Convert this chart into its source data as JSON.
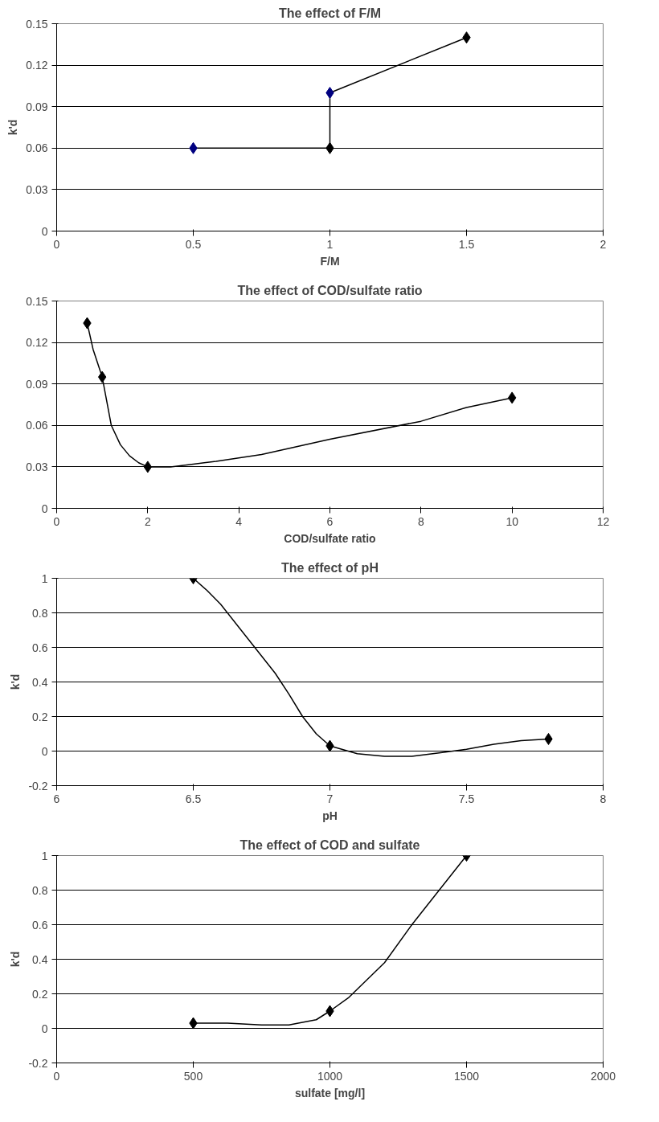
{
  "chart_data": [
    {
      "type": "line",
      "title": "The effect of F/M",
      "xlabel": "F/M",
      "ylabel": "k'd",
      "xlim": [
        0,
        2
      ],
      "xticks": [
        0,
        0.5,
        1,
        1.5,
        2
      ],
      "ylim": [
        0,
        0.15
      ],
      "yticks": [
        0,
        0.03,
        0.06,
        0.09,
        0.12,
        0.15
      ],
      "grid": "y",
      "series": [
        {
          "color": "#000000",
          "marker": "none",
          "x": [
            0.5,
            1,
            1,
            1.5
          ],
          "values": [
            0.06,
            0.06,
            0.1,
            0.14
          ]
        },
        {
          "type": "scatter",
          "marker": "diamond",
          "color": "#000080",
          "x": [
            0.5,
            1
          ],
          "values": [
            0.06,
            0.1
          ]
        },
        {
          "type": "scatter",
          "marker": "diamond",
          "color": "#000000",
          "x": [
            1,
            1.5
          ],
          "values": [
            0.06,
            0.14
          ]
        }
      ]
    },
    {
      "type": "line",
      "title": "The effect of COD/sulfate ratio",
      "xlabel": "COD/sulfate ratio",
      "xlim": [
        0,
        12
      ],
      "xticks": [
        0,
        2,
        4,
        6,
        8,
        10,
        12
      ],
      "ylim": [
        0,
        0.15
      ],
      "yticks": [
        0,
        0.03,
        0.06,
        0.09,
        0.12,
        0.15
      ],
      "grid": "y",
      "series": [
        {
          "color": "#000000",
          "marker": "none",
          "x": [
            0.67,
            0.8,
            1,
            1.2,
            1.4,
            1.6,
            1.8,
            2,
            2.5,
            3,
            3.5,
            4.5,
            6,
            8,
            9,
            10
          ],
          "values": [
            0.134,
            0.115,
            0.095,
            0.06,
            0.046,
            0.038,
            0.033,
            0.03,
            0.03,
            0.032,
            0.034,
            0.039,
            0.05,
            0.063,
            0.073,
            0.08
          ]
        },
        {
          "type": "scatter",
          "marker": "diamond",
          "color": "#000000",
          "x": [
            0.67,
            1,
            2,
            10
          ],
          "values": [
            0.134,
            0.095,
            0.03,
            0.08
          ]
        }
      ]
    },
    {
      "type": "line",
      "title": "The effect of pH",
      "xlabel": "pH",
      "ylabel": "k'd",
      "xlim": [
        6,
        8
      ],
      "xticks": [
        6,
        6.5,
        7,
        7.5,
        8
      ],
      "ylim": [
        -0.2,
        1
      ],
      "yticks": [
        -0.2,
        0,
        0.2,
        0.4,
        0.6,
        0.8,
        1
      ],
      "grid": "y",
      "series": [
        {
          "color": "#000000",
          "marker": "none",
          "x": [
            6.5,
            6.55,
            6.6,
            6.7,
            6.8,
            6.85,
            6.9,
            6.95,
            7,
            7.1,
            7.2,
            7.3,
            7.4,
            7.5,
            7.6,
            7.7,
            7.8
          ],
          "values": [
            1,
            0.93,
            0.85,
            0.65,
            0.45,
            0.33,
            0.2,
            0.1,
            0.03,
            -0.015,
            -0.03,
            -0.03,
            -0.01,
            0.01,
            0.04,
            0.06,
            0.07
          ]
        },
        {
          "type": "scatter",
          "marker": "diamond",
          "color": "#000000",
          "x": [
            6.5,
            7,
            7.8
          ],
          "values": [
            1,
            0.03,
            0.07
          ]
        }
      ]
    },
    {
      "type": "line",
      "title": "The effect of COD and sulfate",
      "xlabel": "sulfate [mg/l]",
      "ylabel": "k'd",
      "xlim": [
        0,
        2000
      ],
      "xticks": [
        0,
        500,
        1000,
        1500,
        2000
      ],
      "ylim": [
        -0.2,
        1
      ],
      "yticks": [
        -0.2,
        0,
        0.2,
        0.4,
        0.6,
        0.8,
        1
      ],
      "grid": "y",
      "series": [
        {
          "color": "#000000",
          "marker": "none",
          "x": [
            500,
            625,
            750,
            850,
            950,
            1000,
            1070,
            1200,
            1300,
            1400,
            1500
          ],
          "values": [
            0.03,
            0.03,
            0.02,
            0.02,
            0.05,
            0.1,
            0.18,
            0.38,
            0.6,
            0.8,
            1
          ]
        },
        {
          "type": "scatter",
          "marker": "diamond",
          "color": "#000000",
          "x": [
            500,
            1000,
            1500
          ],
          "values": [
            0.03,
            0.1,
            1
          ]
        }
      ]
    }
  ]
}
